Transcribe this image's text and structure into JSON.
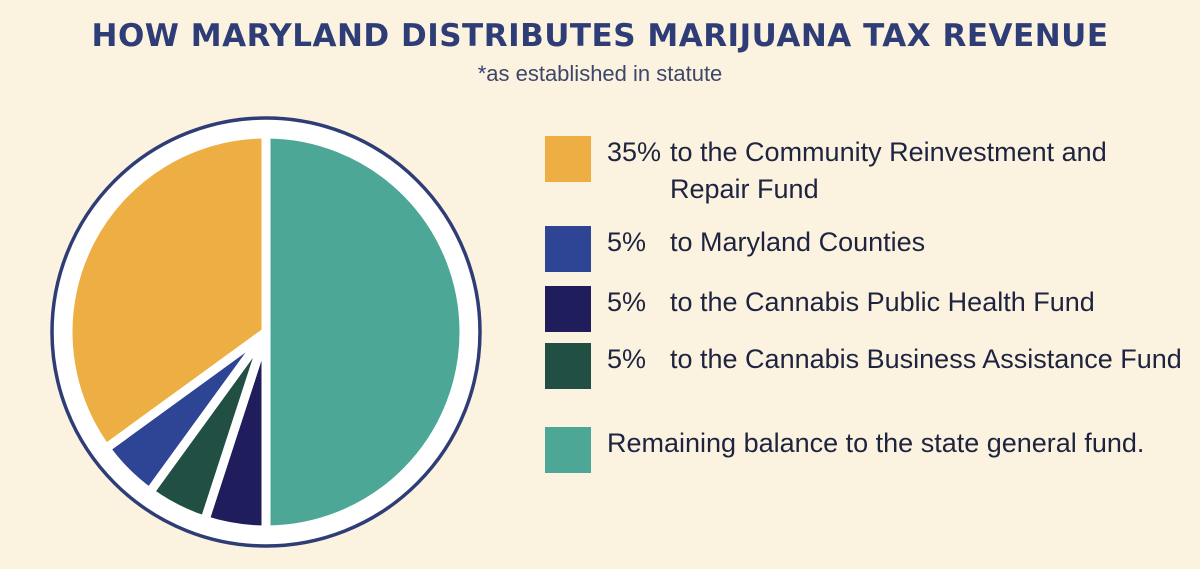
{
  "title": "HOW MARYLAND DISTRIBUTES MARIJUANA TAX REVENUE",
  "subtitle_star": "*",
  "subtitle": "as established in statute",
  "colors": {
    "background": "#fbf2df",
    "outline": "#2f3d77"
  },
  "chart_data": {
    "type": "pie",
    "title": "HOW MARYLAND DISTRIBUTES MARIJUANA TAX REVENUE",
    "subtitle": "*as established in statute",
    "legend_position": "right",
    "slices": [
      {
        "pct_label": "35%",
        "label": "to the Community Reinvestment and Repair Fund",
        "value": 35,
        "color": "#edaf43"
      },
      {
        "pct_label": "5%",
        "label": "to Maryland Counties",
        "value": 5,
        "color": "#2e4494"
      },
      {
        "pct_label": "5%",
        "label": "to the Cannabis Public Health Fund",
        "value": 5,
        "color": "#1f1d5c"
      },
      {
        "pct_label": "5%",
        "label": "to the Cannabis Business Assistance Fund",
        "value": 5,
        "color": "#214f43"
      },
      {
        "pct_label": "",
        "label": "Remaining balance to the state general fund.",
        "value": 50,
        "color": "#4da796"
      }
    ]
  }
}
